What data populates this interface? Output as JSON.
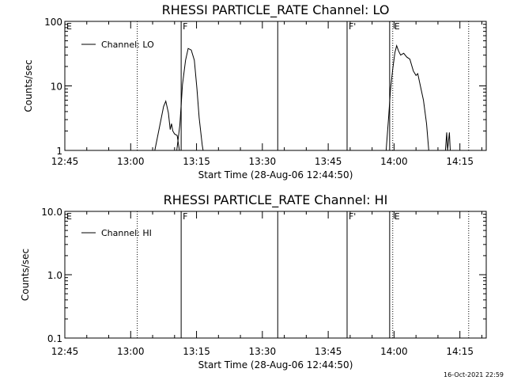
{
  "chart_data": [
    {
      "type": "line",
      "title": "RHESSI PARTICLE_RATE Channel: LO",
      "xlabel": "Start Time (28-Aug-06 12:44:50)",
      "ylabel": "Counts/sec",
      "y_scale": "log",
      "ylim": [
        1,
        100
      ],
      "y_ticks": [
        "1",
        "10",
        "100"
      ],
      "x_ticks": [
        "12:45",
        "13:00",
        "13:15",
        "13:30",
        "13:45",
        "14:00",
        "14:15"
      ],
      "x_tick_minutes": [
        0,
        15,
        30,
        45,
        60,
        75,
        90
      ],
      "xlim_minutes": [
        0,
        96
      ],
      "legend": {
        "label": "Channel: LO",
        "position": "top-left"
      },
      "markers": [
        {
          "label": "E",
          "minute": 0,
          "style": "dotted"
        },
        {
          "label": "",
          "minute": 16.5,
          "style": "dotted"
        },
        {
          "label": "F",
          "minute": 26.5,
          "style": "solid"
        },
        {
          "label": "",
          "minute": 48.5,
          "style": "solid"
        },
        {
          "label": "F'",
          "minute": 64.3,
          "style": "solid"
        },
        {
          "label": "",
          "minute": 74.0,
          "style": "solid"
        },
        {
          "label": "E",
          "minute": 74.7,
          "style": "dotted"
        },
        {
          "label": "",
          "minute": 92.0,
          "style": "dotted"
        }
      ],
      "series": [
        {
          "name": "Channel: LO",
          "segments": [
            [
              [
                20.5,
                1.0
              ],
              [
                21.5,
                2.2
              ],
              [
                22.5,
                4.8
              ],
              [
                23.0,
                5.8
              ],
              [
                23.6,
                3.8
              ],
              [
                24.0,
                2.1
              ],
              [
                24.3,
                2.6
              ],
              [
                24.6,
                2.0
              ],
              [
                25.0,
                1.8
              ],
              [
                25.6,
                1.7
              ],
              [
                26.1,
                1.0
              ]
            ],
            [
              [
                25.5,
                1.0
              ],
              [
                26.2,
                2.5
              ],
              [
                26.8,
                10.5
              ],
              [
                27.5,
                25.0
              ],
              [
                28.1,
                38.0
              ],
              [
                28.8,
                36.0
              ],
              [
                29.5,
                25.0
              ],
              [
                30.1,
                9.0
              ],
              [
                30.6,
                3.2
              ],
              [
                31.3,
                1.2
              ],
              [
                31.5,
                1.0
              ]
            ],
            [
              [
                73.2,
                1.0
              ],
              [
                73.8,
                3.5
              ],
              [
                74.2,
                9.0
              ],
              [
                74.7,
                18.0
              ],
              [
                75.2,
                33.0
              ],
              [
                75.6,
                42.0
              ],
              [
                76.0,
                35.0
              ],
              [
                76.5,
                30.0
              ],
              [
                77.2,
                32.0
              ],
              [
                77.9,
                28.0
              ],
              [
                78.6,
                26.0
              ],
              [
                79.4,
                17.0
              ],
              [
                80.0,
                14.5
              ],
              [
                80.4,
                15.5
              ],
              [
                81.0,
                10.0
              ],
              [
                81.7,
                6.0
              ],
              [
                82.4,
                2.6
              ],
              [
                82.9,
                1.0
              ]
            ],
            [
              [
                86.7,
                1.0
              ],
              [
                87.0,
                1.9
              ],
              [
                87.2,
                1.0
              ],
              [
                87.6,
                1.9
              ],
              [
                87.8,
                1.0
              ]
            ]
          ]
        }
      ]
    },
    {
      "type": "line",
      "title": "RHESSI PARTICLE_RATE Channel: HI",
      "xlabel": "Start Time (28-Aug-06 12:44:50)",
      "ylabel": "Counts/sec",
      "y_scale": "log",
      "ylim": [
        0.1,
        10
      ],
      "y_ticks": [
        "0.1",
        "1.0",
        "10.0"
      ],
      "x_ticks": [
        "12:45",
        "13:00",
        "13:15",
        "13:30",
        "13:45",
        "14:00",
        "14:15"
      ],
      "x_tick_minutes": [
        0,
        15,
        30,
        45,
        60,
        75,
        90
      ],
      "xlim_minutes": [
        0,
        96
      ],
      "legend": {
        "label": "Channel: HI",
        "position": "top-left"
      },
      "markers": [
        {
          "label": "E",
          "minute": 0,
          "style": "dotted"
        },
        {
          "label": "",
          "minute": 16.5,
          "style": "dotted"
        },
        {
          "label": "F",
          "minute": 26.5,
          "style": "solid"
        },
        {
          "label": "",
          "minute": 48.5,
          "style": "solid"
        },
        {
          "label": "F'",
          "minute": 64.3,
          "style": "solid"
        },
        {
          "label": "",
          "minute": 74.0,
          "style": "solid"
        },
        {
          "label": "E",
          "minute": 74.7,
          "style": "dotted"
        },
        {
          "label": "",
          "minute": 92.0,
          "style": "dotted"
        }
      ],
      "series": [
        {
          "name": "Channel: HI",
          "segments": []
        }
      ]
    }
  ],
  "timestamp": "16-Oct-2021 22:59"
}
